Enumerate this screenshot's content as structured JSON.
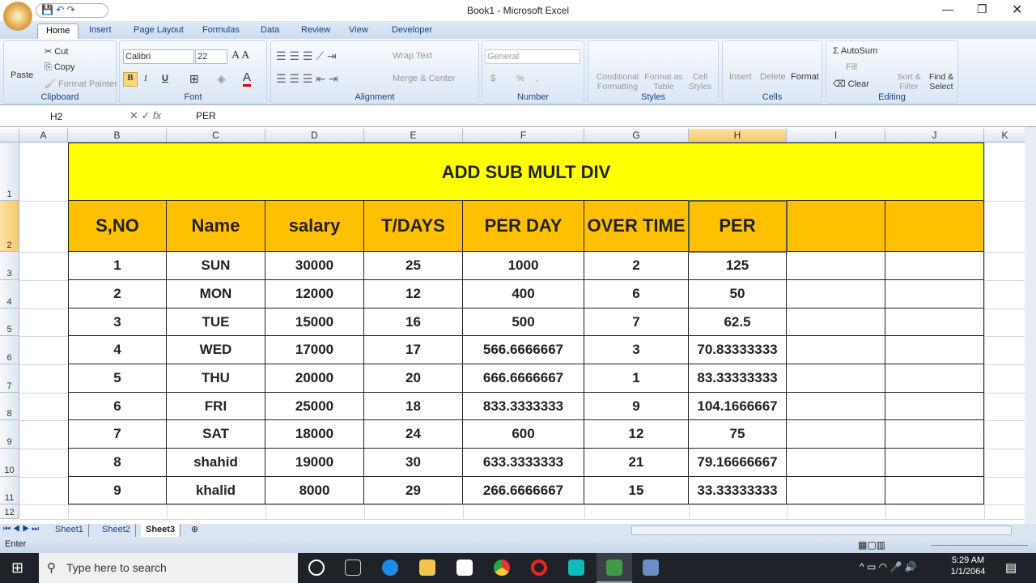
{
  "window": {
    "title": "Book1 - Microsoft Excel"
  },
  "tabs": [
    "Home",
    "Insert",
    "Page Layout",
    "Formulas",
    "Data",
    "Review",
    "View",
    "Developer"
  ],
  "ribbon": {
    "clipboard": {
      "label": "Clipboard",
      "paste": "Paste",
      "cut": "Cut",
      "copy": "Copy",
      "format_painter": "Format Painter"
    },
    "font": {
      "label": "Font",
      "name": "Calibri",
      "size": "22",
      "bold": "B",
      "italic": "I",
      "underline": "U"
    },
    "alignment": {
      "label": "Alignment",
      "wrap": "Wrap Text",
      "merge": "Merge & Center"
    },
    "number": {
      "label": "Number",
      "format": "General",
      "currency": "$",
      "percent": "%",
      "comma": ","
    },
    "styles": {
      "label": "Styles",
      "conditional": "Conditional Formatting",
      "format_table": "Format as Table",
      "cell_styles": "Cell Styles"
    },
    "cells": {
      "label": "Cells",
      "insert": "Insert",
      "delete": "Delete",
      "format": "Format"
    },
    "editing": {
      "label": "Editing",
      "autosum": "AutoSum",
      "fill": "Fill",
      "clear": "Clear",
      "sort": "Sort & Filter",
      "find": "Find & Select"
    }
  },
  "formula_bar": {
    "name_box": "H2",
    "value": "PER",
    "fx": "fx"
  },
  "columns": [
    "A",
    "B",
    "C",
    "D",
    "E",
    "F",
    "G",
    "H",
    "I",
    "J",
    "K"
  ],
  "rows": [
    "1",
    "2",
    "3",
    "4",
    "5",
    "6",
    "7",
    "8",
    "9",
    "10",
    "11",
    "12"
  ],
  "sheet": {
    "title": "ADD SUB MULT DIV",
    "headers": [
      "S,NO",
      "Name",
      "salary",
      "T/DAYS",
      "PER DAY",
      "OVER TIME",
      "PER",
      "",
      ""
    ],
    "data": [
      [
        "1",
        "SUN",
        "30000",
        "25",
        "1000",
        "2",
        "125"
      ],
      [
        "2",
        "MON",
        "12000",
        "12",
        "400",
        "6",
        "50"
      ],
      [
        "3",
        "TUE",
        "15000",
        "16",
        "500",
        "7",
        "62.5"
      ],
      [
        "4",
        "WED",
        "17000",
        "17",
        "566.6666667",
        "3",
        "70.83333333"
      ],
      [
        "5",
        "THU",
        "20000",
        "20",
        "666.6666667",
        "1",
        "83.33333333"
      ],
      [
        "6",
        "FRI",
        "25000",
        "18",
        "833.3333333",
        "9",
        "104.1666667"
      ],
      [
        "7",
        "SAT",
        "18000",
        "24",
        "600",
        "12",
        "75"
      ],
      [
        "8",
        "shahid",
        "19000",
        "30",
        "633.3333333",
        "21",
        "79.16666667"
      ],
      [
        "9",
        "khalid",
        "8000",
        "29",
        "266.6666667",
        "15",
        "33.33333333"
      ]
    ]
  },
  "sheet_tabs": [
    "Sheet1",
    "Sheet2",
    "Sheet3"
  ],
  "active_sheet": "Sheet3",
  "status": {
    "mode": "Enter"
  },
  "taskbar": {
    "search_placeholder": "Type here to search",
    "time": "5:29 AM",
    "date": "1/1/2064"
  },
  "colors": {
    "title_fill": "#ffff00",
    "header_fill": "#ffc000"
  }
}
